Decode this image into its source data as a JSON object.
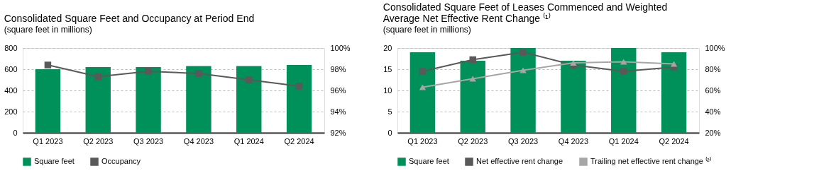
{
  "chart_data": [
    {
      "type": "bar",
      "title": "Consolidated Square Feet and Occupancy at Period End",
      "subtitle": "(square feet in millions)",
      "categories": [
        "Q1 2023",
        "Q2 2023",
        "Q3 2023",
        "Q4 2023",
        "Q1 2024",
        "Q2 2024"
      ],
      "series": [
        {
          "name": "Square feet",
          "color": "#00915a",
          "values": [
            600,
            620,
            620,
            630,
            630,
            640
          ]
        },
        {
          "name": "Occupancy",
          "type": "line",
          "axis": "y2",
          "color": "#595959",
          "marker": "square",
          "values": [
            98.4,
            97.3,
            97.8,
            97.6,
            97.0,
            96.4
          ]
        }
      ],
      "ylim": [
        0,
        800
      ],
      "yticks": [
        0,
        200,
        400,
        600,
        800
      ],
      "y2lim": [
        92,
        100
      ],
      "y2ticks": [
        {
          "value": 92,
          "label": "92%"
        },
        {
          "value": 94,
          "label": "94%"
        },
        {
          "value": 96,
          "label": "96%"
        },
        {
          "value": 98,
          "label": "98%"
        },
        {
          "value": 100,
          "label": "100%"
        }
      ],
      "grid": "y",
      "legend": "bottom"
    },
    {
      "type": "bar",
      "title": "Consolidated Square Feet of Leases Commenced and Weighted Average Net Effective Rent Change ⁽¹⁾",
      "subtitle": "(square feet in millions)",
      "categories": [
        "Q1 2023",
        "Q2 2023",
        "Q3 2023",
        "Q4 2023",
        "Q1 2024",
        "Q2 2024"
      ],
      "series": [
        {
          "name": "Square feet",
          "color": "#00915a",
          "values": [
            19,
            17,
            20,
            17,
            20,
            19
          ]
        },
        {
          "name": "Net effective rent change",
          "type": "line",
          "axis": "y2",
          "color": "#595959",
          "marker": "square",
          "values": [
            78,
            89,
            96,
            84,
            78,
            82
          ]
        },
        {
          "name": "Trailing net effective rent change ⁽²⁾",
          "type": "line",
          "axis": "y2",
          "color": "#a6a6a6",
          "marker": "triangle",
          "values": [
            63,
            71,
            79,
            86,
            87,
            85
          ]
        }
      ],
      "ylim": [
        0,
        20
      ],
      "yticks": [
        0,
        5,
        10,
        15,
        20
      ],
      "y2lim": [
        20,
        100
      ],
      "y2ticks": [
        {
          "value": 20,
          "label": "20%"
        },
        {
          "value": 40,
          "label": "40%"
        },
        {
          "value": 60,
          "label": "60%"
        },
        {
          "value": 80,
          "label": "80%"
        },
        {
          "value": 100,
          "label": "100%"
        }
      ],
      "grid": "y",
      "legend": "bottom"
    }
  ]
}
